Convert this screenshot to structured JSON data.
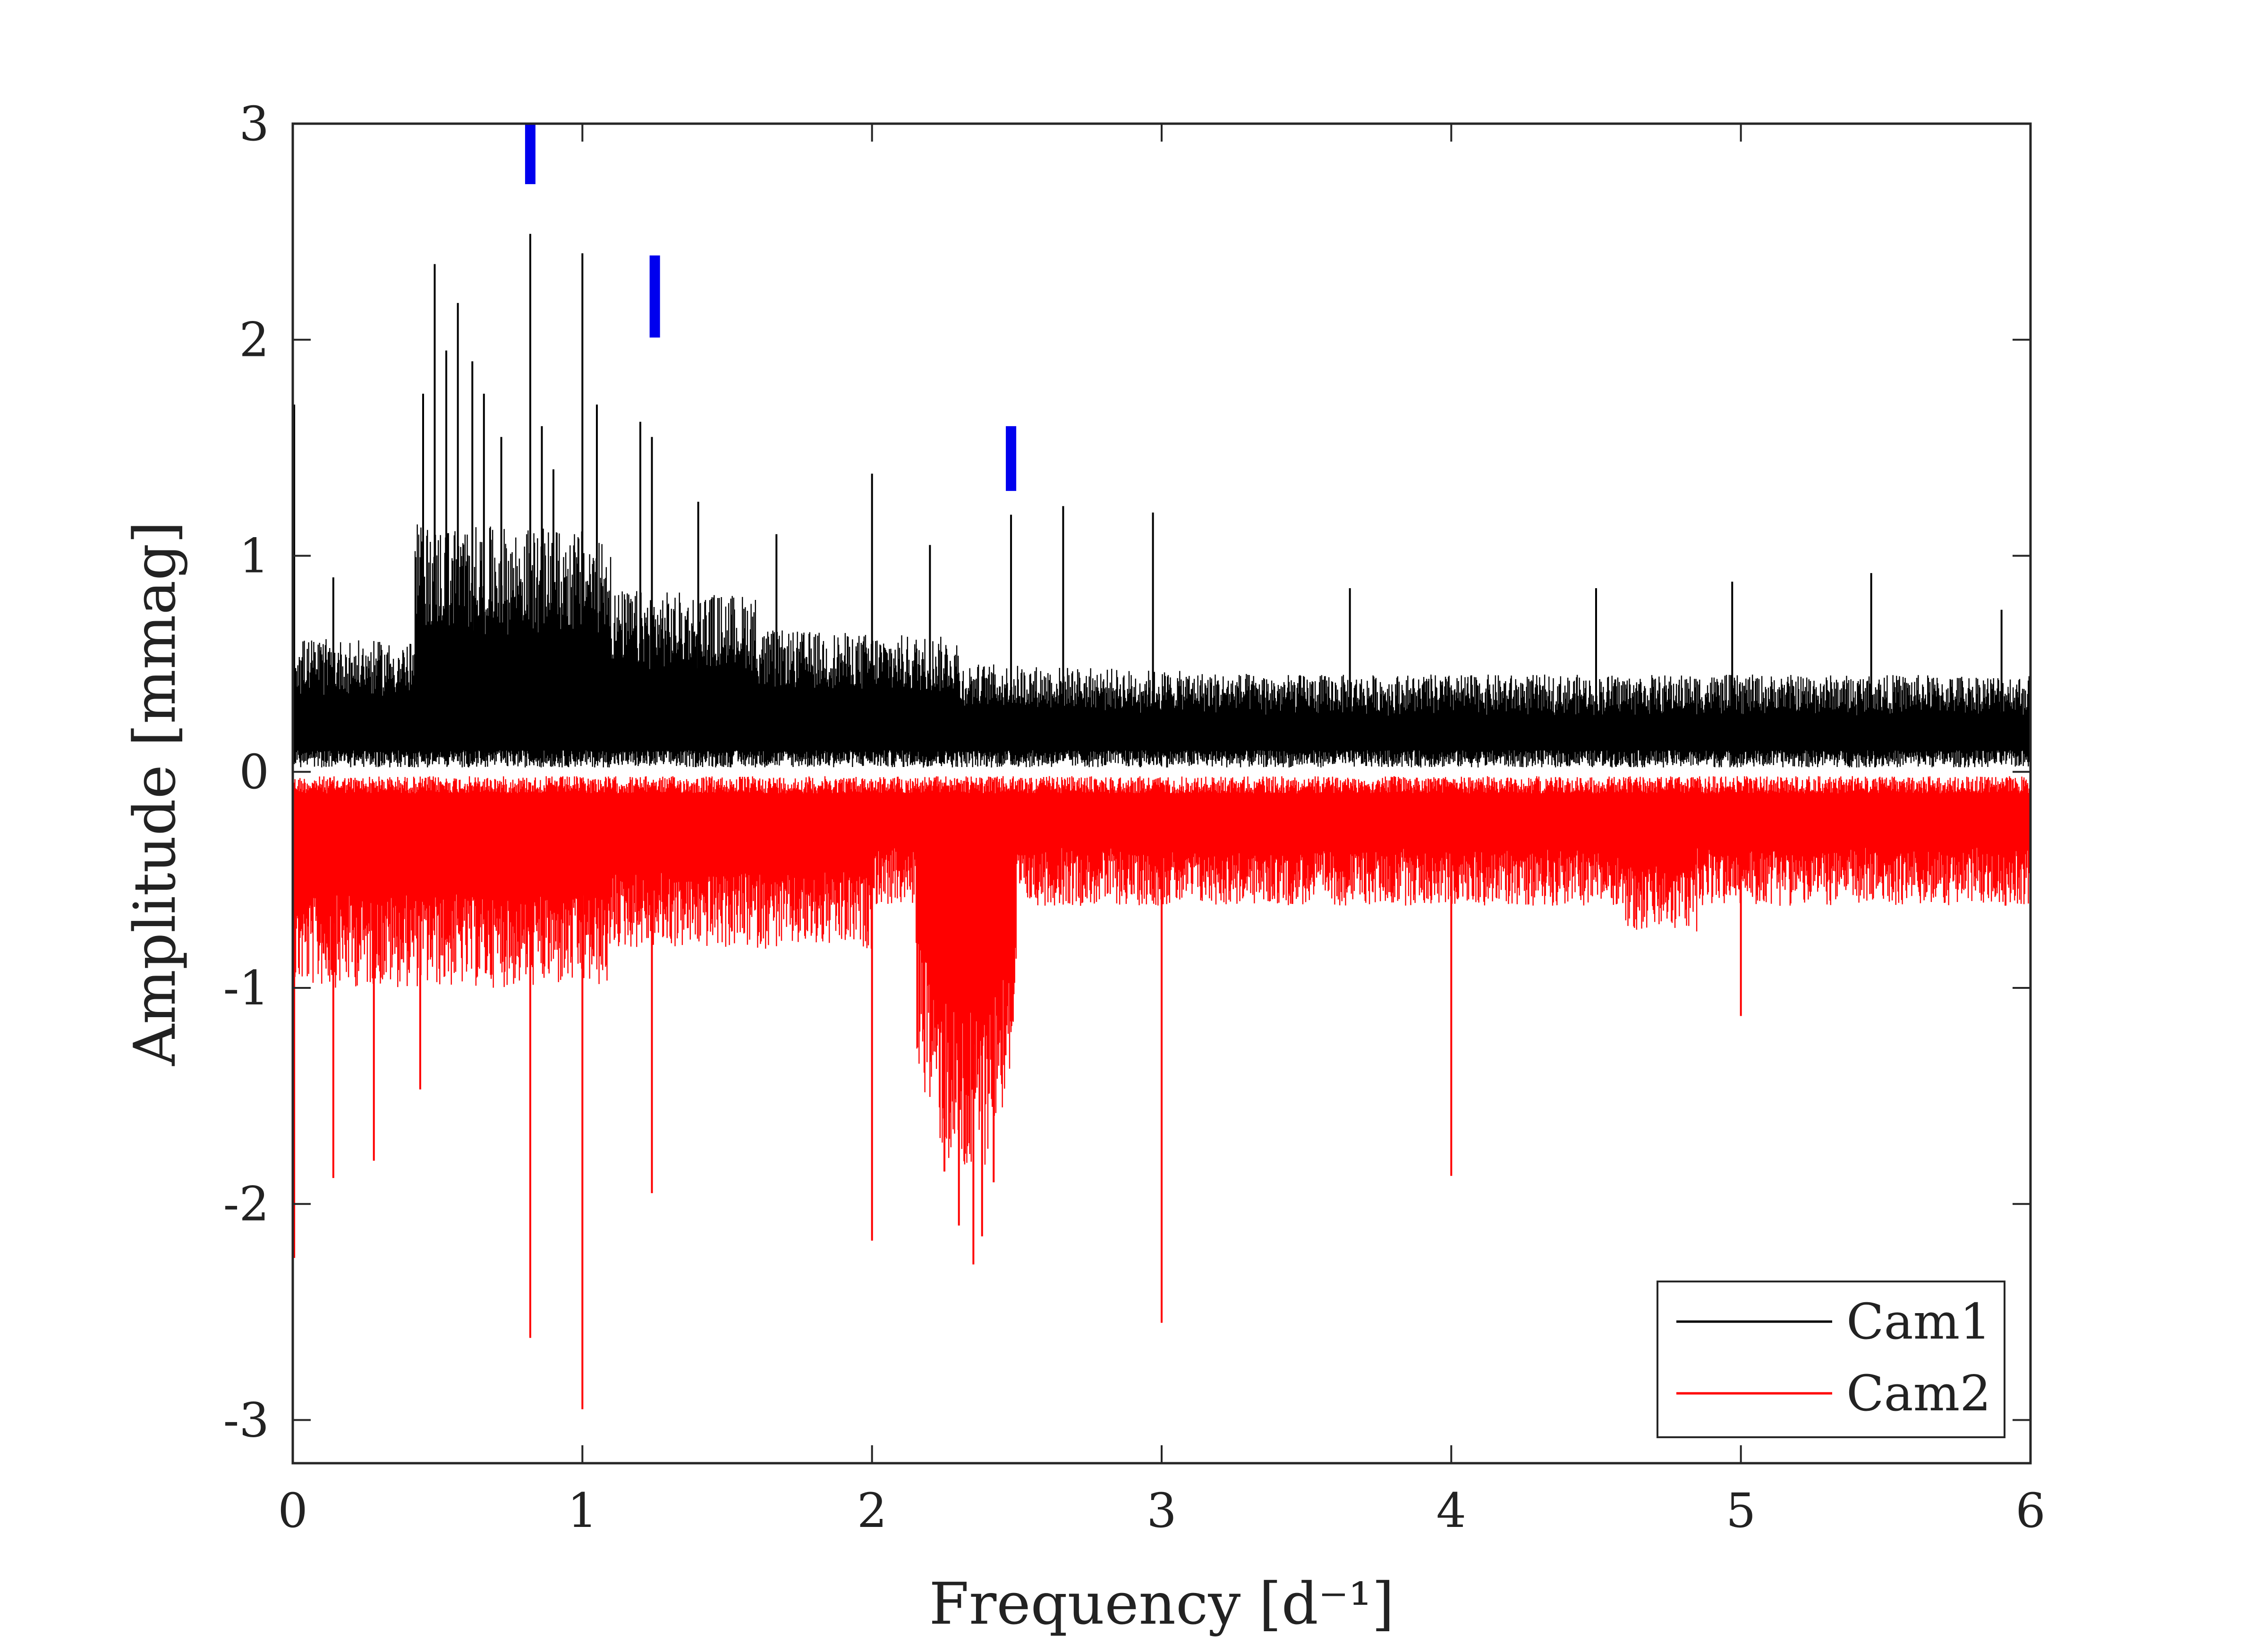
{
  "chart_data": {
    "type": "line",
    "xlabel": "Frequency [d⁻¹]",
    "ylabel": "Amplitude [mmag]",
    "xlim": [
      0,
      6
    ],
    "ylim": [
      -3.2,
      3
    ],
    "x_ticks": [
      "0",
      "1",
      "2",
      "3",
      "4",
      "5",
      "6"
    ],
    "y_ticks": [
      "3",
      "2",
      "1",
      "0",
      "-1",
      "-2",
      "-3"
    ],
    "grid": false,
    "legend_position": "bottom-right",
    "series": [
      {
        "name": "Cam1",
        "color": "#000000",
        "direction": "up",
        "baseline_level": 0.32,
        "peaks": [
          {
            "x": 0.005,
            "y": 1.7
          },
          {
            "x": 0.14,
            "y": 0.9
          },
          {
            "x": 0.45,
            "y": 1.75
          },
          {
            "x": 0.49,
            "y": 2.35
          },
          {
            "x": 0.53,
            "y": 1.95
          },
          {
            "x": 0.57,
            "y": 2.17
          },
          {
            "x": 0.62,
            "y": 1.9
          },
          {
            "x": 0.66,
            "y": 1.75
          },
          {
            "x": 0.72,
            "y": 1.55
          },
          {
            "x": 0.82,
            "y": 2.49
          },
          {
            "x": 0.86,
            "y": 1.6
          },
          {
            "x": 0.9,
            "y": 1.4
          },
          {
            "x": 1.0,
            "y": 2.4
          },
          {
            "x": 1.05,
            "y": 1.7
          },
          {
            "x": 1.2,
            "y": 1.62
          },
          {
            "x": 1.24,
            "y": 1.55
          },
          {
            "x": 1.4,
            "y": 1.25
          },
          {
            "x": 1.67,
            "y": 1.1
          },
          {
            "x": 2.0,
            "y": 1.38
          },
          {
            "x": 2.2,
            "y": 1.05
          },
          {
            "x": 2.48,
            "y": 1.19
          },
          {
            "x": 2.66,
            "y": 1.23
          },
          {
            "x": 2.97,
            "y": 1.2
          },
          {
            "x": 3.65,
            "y": 0.85
          },
          {
            "x": 4.5,
            "y": 0.85
          },
          {
            "x": 4.97,
            "y": 0.88
          },
          {
            "x": 5.45,
            "y": 0.92
          },
          {
            "x": 5.9,
            "y": 0.75
          }
        ]
      },
      {
        "name": "Cam2",
        "color": "#ff0000",
        "direction": "down",
        "baseline_level": -0.32,
        "dips": [
          {
            "x": 0.005,
            "y": -2.25
          },
          {
            "x": 0.14,
            "y": -1.88
          },
          {
            "x": 0.28,
            "y": -1.8
          },
          {
            "x": 0.44,
            "y": -1.47
          },
          {
            "x": 0.82,
            "y": -2.62
          },
          {
            "x": 1.0,
            "y": -2.95
          },
          {
            "x": 1.24,
            "y": -1.95
          },
          {
            "x": 2.0,
            "y": -2.17
          },
          {
            "x": 2.25,
            "y": -1.85
          },
          {
            "x": 2.3,
            "y": -2.1
          },
          {
            "x": 2.35,
            "y": -2.28
          },
          {
            "x": 2.38,
            "y": -2.15
          },
          {
            "x": 2.42,
            "y": -1.9
          },
          {
            "x": 3.0,
            "y": -2.55
          },
          {
            "x": 4.0,
            "y": -1.87
          },
          {
            "x": 5.0,
            "y": -1.13
          }
        ]
      }
    ],
    "markers": {
      "color": "#0000ee",
      "items": [
        {
          "x": 0.82,
          "y_low": 2.72,
          "y_high": 3.0
        },
        {
          "x": 1.25,
          "y_low": 2.01,
          "y_high": 2.39
        },
        {
          "x": 2.48,
          "y_low": 1.3,
          "y_high": 1.6
        }
      ]
    }
  }
}
